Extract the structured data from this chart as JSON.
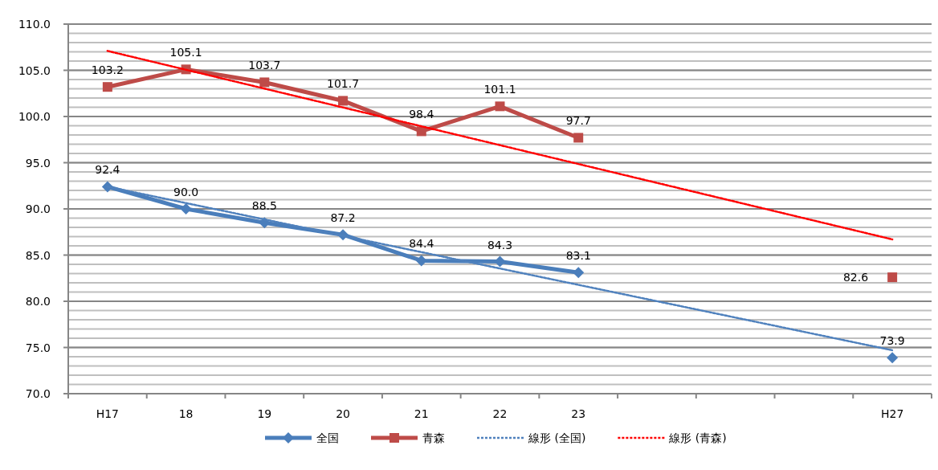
{
  "chart_data": {
    "type": "line",
    "categories": [
      "H17",
      "18",
      "19",
      "20",
      "21",
      "22",
      "23",
      null,
      null,
      null,
      "H27"
    ],
    "ylim": [
      70,
      110
    ],
    "yticks": [
      {
        "value": 70,
        "label": "70.0"
      },
      {
        "value": 75,
        "label": "75.0"
      },
      {
        "value": 80,
        "label": "80.0"
      },
      {
        "value": 85,
        "label": "85.0"
      },
      {
        "value": 90,
        "label": "90.0"
      },
      {
        "value": 95,
        "label": "95.0"
      },
      {
        "value": 100,
        "label": "100.0"
      },
      {
        "value": 105,
        "label": "105.0"
      },
      {
        "value": 110,
        "label": "110.0"
      }
    ],
    "grid": "y",
    "legend": "bottom",
    "series": [
      {
        "name": "全国",
        "color": "#4a7ebb",
        "marker": "diamond",
        "line_style": "solid",
        "values": [
          92.4,
          90.0,
          88.5,
          87.2,
          84.4,
          84.3,
          83.1,
          null,
          null,
          null,
          73.9
        ],
        "value_labels": [
          "92.4",
          "90.0",
          "88.5",
          "87.2",
          "84.4",
          "84.3",
          "83.1",
          null,
          null,
          null,
          "73.9"
        ]
      },
      {
        "name": "青森",
        "color": "#be4b48",
        "marker": "square",
        "line_style": "solid",
        "values": [
          103.2,
          105.1,
          103.7,
          101.7,
          98.4,
          101.1,
          97.7,
          null,
          null,
          null,
          82.6
        ],
        "value_labels": [
          "103.2",
          "105.1",
          "103.7",
          "101.7",
          "98.4",
          "101.1",
          "97.7",
          null,
          null,
          null,
          "82.6"
        ]
      },
      {
        "name": "線形 (全国)",
        "color": "#4f81bd",
        "marker": "none",
        "line_style": "dotted",
        "x": [
          "H17",
          "H27"
        ],
        "values": [
          92.4,
          74.7
        ]
      },
      {
        "name": "線形 (青森)",
        "color": "#ff0000",
        "marker": "none",
        "line_style": "dotted",
        "x": [
          "H17",
          "H27"
        ],
        "values": [
          107.1,
          86.7
        ]
      }
    ]
  }
}
